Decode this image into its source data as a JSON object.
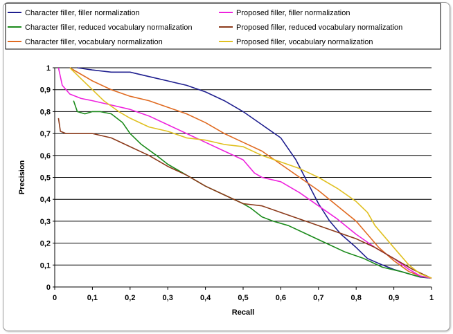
{
  "chart_data": {
    "type": "line",
    "xlabel": "Recall",
    "ylabel": "Precision",
    "xlim": [
      0,
      1
    ],
    "ylim": [
      0,
      1
    ],
    "x_ticks": [
      "0",
      "0,1",
      "0,2",
      "0,3",
      "0,4",
      "0,5",
      "0,6",
      "0,7",
      "0,8",
      "0,9",
      "1"
    ],
    "y_ticks": [
      "0",
      "0,1",
      "0,2",
      "0,3",
      "0,4",
      "0,5",
      "0,6",
      "0,7",
      "0,8",
      "0,9",
      "1"
    ],
    "grid": "horizontal",
    "legend_position": "top",
    "series": [
      {
        "name": "Character filler, filler normalization",
        "color": "#1f1f8f",
        "points": [
          [
            0.06,
            1.0
          ],
          [
            0.1,
            0.99
          ],
          [
            0.15,
            0.98
          ],
          [
            0.2,
            0.98
          ],
          [
            0.25,
            0.96
          ],
          [
            0.3,
            0.94
          ],
          [
            0.35,
            0.92
          ],
          [
            0.4,
            0.89
          ],
          [
            0.45,
            0.85
          ],
          [
            0.5,
            0.8
          ],
          [
            0.55,
            0.74
          ],
          [
            0.6,
            0.68
          ],
          [
            0.64,
            0.58
          ],
          [
            0.67,
            0.48
          ],
          [
            0.7,
            0.38
          ],
          [
            0.73,
            0.3
          ],
          [
            0.76,
            0.24
          ],
          [
            0.8,
            0.18
          ],
          [
            0.83,
            0.13
          ],
          [
            0.87,
            0.1
          ],
          [
            0.9,
            0.08
          ],
          [
            0.94,
            0.06
          ],
          [
            0.97,
            0.045
          ],
          [
            1.0,
            0.04
          ]
        ]
      },
      {
        "name": "Character filler, reduced vocabulary normalization",
        "color": "#1a8a1a",
        "points": [
          [
            0.05,
            0.85
          ],
          [
            0.06,
            0.8
          ],
          [
            0.08,
            0.79
          ],
          [
            0.1,
            0.8
          ],
          [
            0.12,
            0.8
          ],
          [
            0.15,
            0.79
          ],
          [
            0.18,
            0.75
          ],
          [
            0.2,
            0.7
          ],
          [
            0.23,
            0.65
          ],
          [
            0.27,
            0.6
          ],
          [
            0.3,
            0.56
          ],
          [
            0.35,
            0.51
          ],
          [
            0.4,
            0.46
          ],
          [
            0.45,
            0.42
          ],
          [
            0.5,
            0.38
          ],
          [
            0.52,
            0.36
          ],
          [
            0.55,
            0.32
          ],
          [
            0.58,
            0.3
          ],
          [
            0.62,
            0.28
          ],
          [
            0.67,
            0.24
          ],
          [
            0.72,
            0.2
          ],
          [
            0.77,
            0.16
          ],
          [
            0.82,
            0.13
          ],
          [
            0.87,
            0.09
          ],
          [
            0.92,
            0.07
          ],
          [
            0.96,
            0.05
          ],
          [
            1.0,
            0.04
          ]
        ]
      },
      {
        "name": "Character filler,  vocabulary normalization",
        "color": "#e06a20",
        "points": [
          [
            0.04,
            1.0
          ],
          [
            0.07,
            0.97
          ],
          [
            0.1,
            0.94
          ],
          [
            0.15,
            0.9
          ],
          [
            0.2,
            0.87
          ],
          [
            0.25,
            0.85
          ],
          [
            0.3,
            0.82
          ],
          [
            0.35,
            0.79
          ],
          [
            0.4,
            0.75
          ],
          [
            0.45,
            0.7
          ],
          [
            0.5,
            0.66
          ],
          [
            0.55,
            0.62
          ],
          [
            0.6,
            0.56
          ],
          [
            0.65,
            0.5
          ],
          [
            0.7,
            0.44
          ],
          [
            0.75,
            0.37
          ],
          [
            0.8,
            0.3
          ],
          [
            0.83,
            0.24
          ],
          [
            0.86,
            0.18
          ],
          [
            0.9,
            0.12
          ],
          [
            0.94,
            0.07
          ],
          [
            0.97,
            0.05
          ],
          [
            1.0,
            0.04
          ]
        ]
      },
      {
        "name": "Proposed filler, filler normalization",
        "color": "#ee22dd",
        "points": [
          [
            0.01,
            1.0
          ],
          [
            0.02,
            0.92
          ],
          [
            0.04,
            0.88
          ],
          [
            0.07,
            0.86
          ],
          [
            0.1,
            0.85
          ],
          [
            0.15,
            0.83
          ],
          [
            0.2,
            0.81
          ],
          [
            0.25,
            0.78
          ],
          [
            0.3,
            0.74
          ],
          [
            0.35,
            0.7
          ],
          [
            0.4,
            0.66
          ],
          [
            0.45,
            0.62
          ],
          [
            0.5,
            0.58
          ],
          [
            0.53,
            0.52
          ],
          [
            0.55,
            0.5
          ],
          [
            0.6,
            0.48
          ],
          [
            0.65,
            0.43
          ],
          [
            0.7,
            0.37
          ],
          [
            0.75,
            0.31
          ],
          [
            0.8,
            0.24
          ],
          [
            0.85,
            0.18
          ],
          [
            0.9,
            0.13
          ],
          [
            0.94,
            0.08
          ],
          [
            0.97,
            0.05
          ],
          [
            1.0,
            0.04
          ]
        ]
      },
      {
        "name": "Proposed filler, reduced vocabulary normalization",
        "color": "#8b3a1a",
        "points": [
          [
            0.01,
            0.77
          ],
          [
            0.015,
            0.71
          ],
          [
            0.03,
            0.7
          ],
          [
            0.06,
            0.7
          ],
          [
            0.1,
            0.7
          ],
          [
            0.15,
            0.68
          ],
          [
            0.2,
            0.64
          ],
          [
            0.25,
            0.6
          ],
          [
            0.3,
            0.55
          ],
          [
            0.35,
            0.51
          ],
          [
            0.4,
            0.46
          ],
          [
            0.45,
            0.42
          ],
          [
            0.5,
            0.38
          ],
          [
            0.55,
            0.37
          ],
          [
            0.6,
            0.34
          ],
          [
            0.65,
            0.31
          ],
          [
            0.7,
            0.28
          ],
          [
            0.75,
            0.25
          ],
          [
            0.8,
            0.22
          ],
          [
            0.85,
            0.18
          ],
          [
            0.9,
            0.13
          ],
          [
            0.95,
            0.08
          ],
          [
            1.0,
            0.04
          ]
        ]
      },
      {
        "name": "Proposed filler, vocabulary normalization",
        "color": "#e0c020",
        "points": [
          [
            0.04,
            1.0
          ],
          [
            0.07,
            0.95
          ],
          [
            0.1,
            0.9
          ],
          [
            0.13,
            0.85
          ],
          [
            0.17,
            0.8
          ],
          [
            0.2,
            0.77
          ],
          [
            0.25,
            0.73
          ],
          [
            0.3,
            0.71
          ],
          [
            0.35,
            0.68
          ],
          [
            0.4,
            0.67
          ],
          [
            0.45,
            0.65
          ],
          [
            0.5,
            0.64
          ],
          [
            0.55,
            0.6
          ],
          [
            0.6,
            0.57
          ],
          [
            0.65,
            0.54
          ],
          [
            0.7,
            0.5
          ],
          [
            0.75,
            0.45
          ],
          [
            0.8,
            0.39
          ],
          [
            0.83,
            0.34
          ],
          [
            0.85,
            0.28
          ],
          [
            0.88,
            0.22
          ],
          [
            0.91,
            0.16
          ],
          [
            0.94,
            0.1
          ],
          [
            0.97,
            0.06
          ],
          [
            1.0,
            0.04
          ]
        ]
      }
    ]
  }
}
